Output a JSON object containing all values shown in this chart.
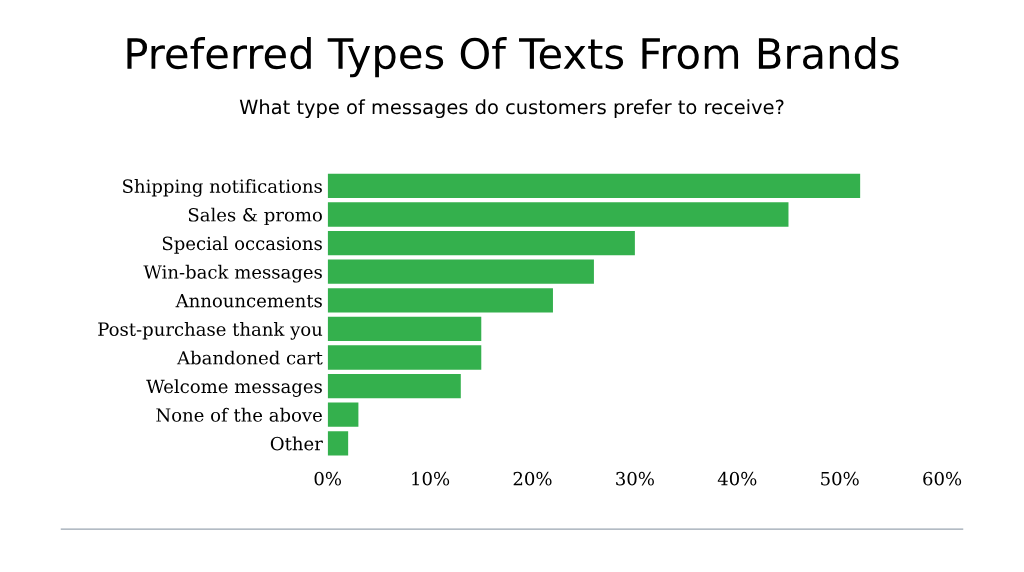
{
  "chart_data": {
    "type": "bar",
    "orientation": "horizontal",
    "title": "Preferred Types Of Texts From Brands",
    "subtitle": "What type of messages do customers prefer to receive?",
    "categories": [
      "Shipping notifications",
      "Sales & promo",
      "Special occasions",
      "Win-back messages",
      "Announcements",
      "Post-purchase thank you",
      "Abandoned cart",
      "Welcome messages",
      "None of the above",
      "Other"
    ],
    "values": [
      52,
      45,
      30,
      26,
      22,
      15,
      15,
      13,
      3,
      2
    ],
    "color": "#34b04d",
    "xlim": [
      0,
      60
    ],
    "xticks": [
      {
        "value": 0,
        "label": "0%"
      },
      {
        "value": 10,
        "label": "10%"
      },
      {
        "value": 20,
        "label": "20%"
      },
      {
        "value": 30,
        "label": "30%"
      },
      {
        "value": 40,
        "label": "40%"
      },
      {
        "value": 50,
        "label": "50%"
      },
      {
        "value": 60,
        "label": "60%"
      }
    ],
    "grid": false,
    "legend": false
  }
}
